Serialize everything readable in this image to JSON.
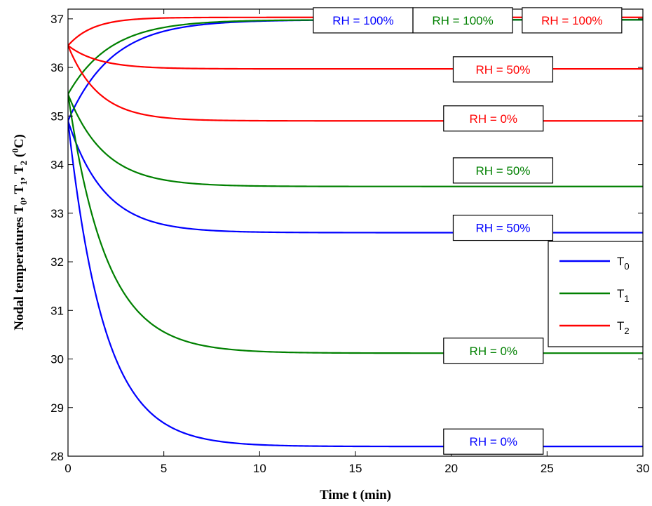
{
  "chart_data": {
    "type": "line",
    "xlabel": "Time t (min)",
    "ylabel_parts": {
      "prefix": "Nodal temperatures T",
      "sub0": "0",
      "sep1": ", T",
      "sub1": "1",
      "sep2": ", T",
      "sub2": "2",
      "unit_open": " (",
      "unit_sup": "0",
      "unit_close": "C)"
    },
    "xlim": [
      0,
      30
    ],
    "ylim": [
      28,
      37.2
    ],
    "xticks": [
      "0",
      "5",
      "10",
      "15",
      "20",
      "25",
      "30"
    ],
    "yticks": [
      "28",
      "29",
      "30",
      "31",
      "32",
      "33",
      "34",
      "35",
      "36",
      "37"
    ],
    "grid": false,
    "legend": {
      "position": "right",
      "entries": [
        {
          "base": "T",
          "sub": "0",
          "color": "#0000ff"
        },
        {
          "base": "T",
          "sub": "1",
          "color": "#008000"
        },
        {
          "base": "T",
          "sub": "2",
          "color": "#ff0000"
        }
      ]
    },
    "series": [
      {
        "node": "T0",
        "rh": "100%",
        "color": "#0000ff",
        "y0": 34.9,
        "y_inf": 36.98,
        "tau": 2.3
      },
      {
        "node": "T0",
        "rh": "50%",
        "color": "#0000ff",
        "y0": 34.9,
        "y_inf": 32.6,
        "tau": 1.9
      },
      {
        "node": "T0",
        "rh": "0%",
        "color": "#0000ff",
        "y0": 34.9,
        "y_inf": 28.2,
        "tau": 1.9
      },
      {
        "node": "T1",
        "rh": "100%",
        "color": "#008000",
        "y0": 35.45,
        "y_inf": 36.98,
        "tau": 2.2
      },
      {
        "node": "T1",
        "rh": "50%",
        "color": "#008000",
        "y0": 35.45,
        "y_inf": 33.55,
        "tau": 1.9
      },
      {
        "node": "T1",
        "rh": "0%",
        "color": "#008000",
        "y0": 35.45,
        "y_inf": 30.12,
        "tau": 2.0
      },
      {
        "node": "T2",
        "rh": "100%",
        "color": "#ff0000",
        "y0": 36.45,
        "y_inf": 37.03,
        "tau": 1.3
      },
      {
        "node": "T2",
        "rh": "50%",
        "color": "#ff0000",
        "y0": 36.45,
        "y_inf": 35.97,
        "tau": 1.6
      },
      {
        "node": "T2",
        "rh": "0%",
        "color": "#ff0000",
        "y0": 36.45,
        "y_inf": 34.9,
        "tau": 1.6
      }
    ],
    "annotations": [
      {
        "text": "RH = 100%",
        "color": "#0000ff",
        "x": 15.4,
        "y": 36.97
      },
      {
        "text": "RH = 100%",
        "color": "#008000",
        "x": 20.6,
        "y": 36.97
      },
      {
        "text": "RH = 100%",
        "color": "#ff0000",
        "x": 26.3,
        "y": 36.97
      },
      {
        "text": "RH = 50%",
        "color": "#ff0000",
        "x": 22.7,
        "y": 35.96
      },
      {
        "text": "RH =  0%",
        "color": "#ff0000",
        "x": 22.2,
        "y": 34.95
      },
      {
        "text": "RH = 50%",
        "color": "#008000",
        "x": 22.7,
        "y": 33.88
      },
      {
        "text": "RH = 50%",
        "color": "#0000ff",
        "x": 22.7,
        "y": 32.7
      },
      {
        "text": "RH =  0%",
        "color": "#008000",
        "x": 22.2,
        "y": 30.17
      },
      {
        "text": "RH =  0%",
        "color": "#0000ff",
        "x": 22.2,
        "y": 28.3
      }
    ]
  }
}
